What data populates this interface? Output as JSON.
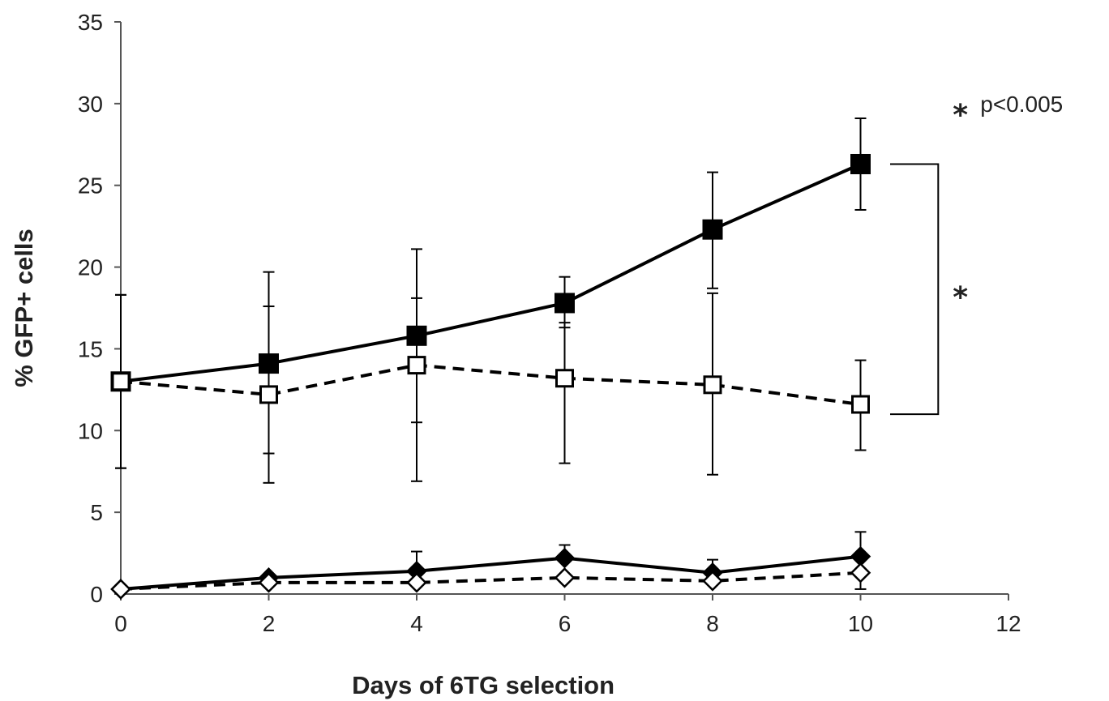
{
  "chart_data": {
    "type": "line",
    "title": "",
    "xlabel": "Days of 6TG selection",
    "ylabel": "% GFP+ cells",
    "xlim": [
      0,
      12
    ],
    "ylim": [
      0,
      35
    ],
    "x_ticks": [
      "0",
      "2",
      "4",
      "6",
      "8",
      "10",
      "12"
    ],
    "y_ticks": [
      "0",
      "5",
      "10",
      "15",
      "20",
      "25",
      "30",
      "35"
    ],
    "grid": false,
    "legend": "none",
    "x": [
      0,
      2,
      4,
      6,
      8,
      10
    ],
    "series": [
      {
        "marker": "square-filled",
        "line": "solid",
        "values": [
          13.0,
          14.1,
          15.8,
          17.8,
          22.3,
          26.3
        ],
        "error_upper": [
          18.3,
          19.7,
          21.1,
          19.4,
          25.8,
          29.1
        ],
        "error_lower": [
          7.7,
          8.6,
          10.5,
          16.3,
          18.7,
          23.5
        ]
      },
      {
        "marker": "square-open",
        "line": "dashed",
        "values": [
          13.0,
          12.2,
          14.0,
          13.2,
          12.8,
          11.6
        ],
        "error_upper": [
          18.3,
          17.6,
          18.1,
          16.6,
          18.4,
          14.3
        ],
        "error_lower": [
          7.7,
          6.8,
          6.9,
          8.0,
          7.3,
          8.8
        ]
      },
      {
        "marker": "diamond-filled",
        "line": "solid",
        "values": [
          0.3,
          1.0,
          1.4,
          2.2,
          1.3,
          2.3
        ],
        "error_upper": [
          0.3,
          1.0,
          2.6,
          3.0,
          2.1,
          3.8
        ],
        "error_lower": [
          0.3,
          1.0,
          1.4,
          2.2,
          1.3,
          2.3
        ]
      },
      {
        "marker": "diamond-open",
        "line": "dashed",
        "values": [
          0.3,
          0.7,
          0.7,
          1.0,
          0.8,
          1.3
        ],
        "error_upper": [
          0.3,
          0.7,
          0.7,
          1.0,
          0.8,
          1.3
        ],
        "error_lower": [
          0.3,
          0.7,
          0.7,
          1.0,
          0.8,
          0.3
        ]
      }
    ],
    "annotations": {
      "significance_marker": "*",
      "significance_legend_marker": "*",
      "significance_legend_text": "p<0.005",
      "bracket_span": [
        11.0,
        26.3
      ]
    },
    "colors": {
      "ink": "#000000",
      "text": "#222222",
      "axis": "#555555",
      "background": "#ffffff"
    }
  }
}
